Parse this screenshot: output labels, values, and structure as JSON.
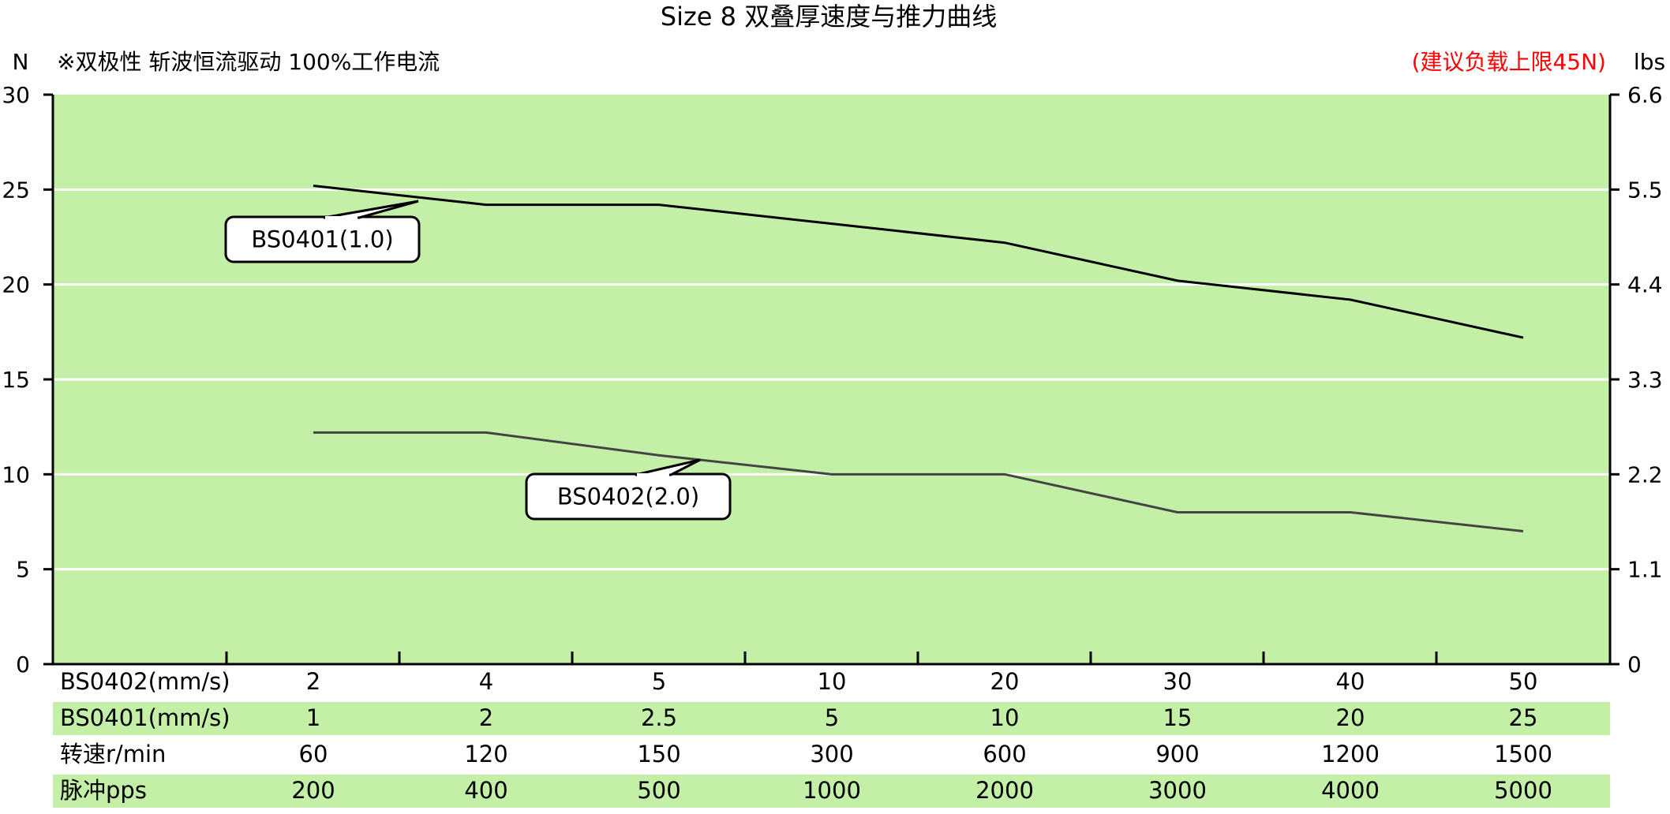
{
  "chart_data": {
    "type": "line",
    "title": "Size 8 双叠厚速度与推力曲线",
    "subtitle": "※双极性 斩波恒流驱动 100%工作电流",
    "note": "(建议负载上限45N)",
    "ylabel_left": "N",
    "ylabel_right": "lbs",
    "ylim": [
      0,
      30
    ],
    "yticks_left": [
      "0",
      "5",
      "10",
      "15",
      "20",
      "25",
      "30"
    ],
    "yticks_right": [
      "0",
      "1.1",
      "2.2",
      "3.3",
      "4.4",
      "5.5",
      "6.6"
    ],
    "grid": true,
    "categories": [
      "2",
      "4",
      "5",
      "10",
      "20",
      "30",
      "40",
      "50"
    ],
    "series": [
      {
        "name": "BS0401(1.0)",
        "values": [
          25.2,
          24.2,
          24.2,
          23.2,
          22.2,
          20.2,
          19.2,
          17.2
        ]
      },
      {
        "name": "BS0402(2.0)",
        "values": [
          12.2,
          12.2,
          11.0,
          10.0,
          10.0,
          8.0,
          8.0,
          7.0
        ]
      }
    ],
    "table": [
      {
        "label": "BS0402(mm/s)",
        "values": [
          "2",
          "4",
          "5",
          "10",
          "20",
          "30",
          "40",
          "50"
        ]
      },
      {
        "label": "BS0401(mm/s)",
        "values": [
          "1",
          "2",
          "2.5",
          "5",
          "10",
          "15",
          "20",
          "25"
        ]
      },
      {
        "label": "转速r/min",
        "values": [
          "60",
          "120",
          "150",
          "300",
          "600",
          "900",
          "1200",
          "1500"
        ]
      },
      {
        "label": "脉冲pps",
        "values": [
          "200",
          "400",
          "500",
          "1000",
          "2000",
          "3000",
          "4000",
          "5000"
        ]
      }
    ]
  },
  "colors": {
    "plot_bg": "#c3f0a6",
    "grid": "#ffffff",
    "series_1": "#000000",
    "series_2": "#444444",
    "note": "#ff0000",
    "row_highlight": "#c3f0a6"
  }
}
